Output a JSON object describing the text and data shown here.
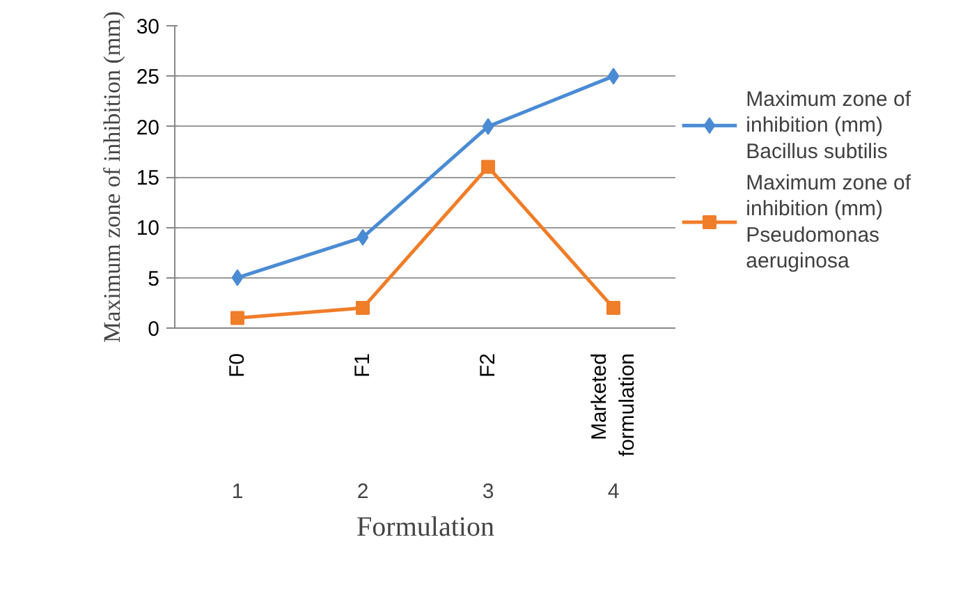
{
  "chart_data": {
    "type": "line",
    "xlabel": "Formulation",
    "ylabel": "Maximum zone of inhibition (mm)",
    "categories": [
      "F0",
      "F1",
      "F2",
      "Marketed formulation"
    ],
    "series": [
      {
        "name": "Maximum zone of inhibition (mm) Bacillus subtilis",
        "color": "#4a8bd4",
        "marker": "diamond",
        "values": [
          5,
          9,
          20,
          25
        ]
      },
      {
        "name": "Maximum zone of inhibition (mm) Pseudomonas aeruginosa",
        "color": "#f07d28",
        "marker": "square",
        "values": [
          1,
          2,
          16,
          2
        ]
      }
    ],
    "ylim": [
      0,
      30
    ],
    "yticks": [
      0,
      5,
      10,
      15,
      20,
      25,
      30
    ],
    "grid": "y",
    "legend": "right",
    "annotations": [
      "1",
      "2",
      "3",
      "4"
    ]
  }
}
